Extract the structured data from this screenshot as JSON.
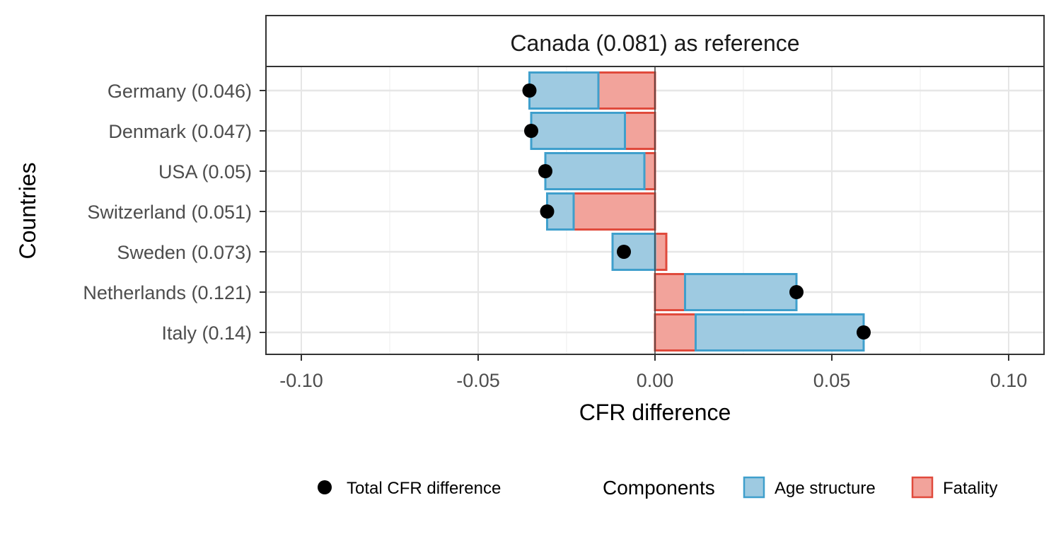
{
  "chart_data": {
    "type": "bar",
    "orientation": "horizontal",
    "stacked": true,
    "facet_title": "Canada (0.081) as reference",
    "xlabel": "CFR difference",
    "ylabel": "Countries",
    "xlim": [
      -0.11,
      0.11
    ],
    "x_ticks": [
      -0.1,
      -0.05,
      0.0,
      0.05,
      0.1
    ],
    "x_tick_labels": [
      "-0.10",
      "-0.05",
      "0.00",
      "0.05",
      "0.10"
    ],
    "grid": true,
    "legend_position": "bottom",
    "categories": [
      "Germany (0.046)",
      "Denmark (0.047)",
      "USA (0.05)",
      "Switzerland (0.051)",
      "Sweden (0.073)",
      "Netherlands (0.121)",
      "Italy (0.14)"
    ],
    "series": [
      {
        "name": "Age structure",
        "color": "#9ecae1",
        "stroke": "#3f9fcc",
        "values": [
          -0.0195,
          -0.0265,
          -0.028,
          -0.0075,
          -0.012,
          0.0315,
          0.0475
        ]
      },
      {
        "name": "Fatality",
        "color": "#f2a39b",
        "stroke": "#e04a3c",
        "values": [
          -0.016,
          -0.0085,
          -0.003,
          -0.023,
          0.0032,
          0.0085,
          0.0115
        ]
      }
    ],
    "totals": {
      "name": "Total CFR difference",
      "color": "#000000",
      "values": [
        -0.0355,
        -0.035,
        -0.031,
        -0.0305,
        -0.0088,
        0.04,
        0.059
      ]
    },
    "legend": {
      "points_label": "Total CFR difference",
      "fill_title": "Components",
      "fill_items": [
        "Age structure",
        "Fatality"
      ]
    }
  }
}
